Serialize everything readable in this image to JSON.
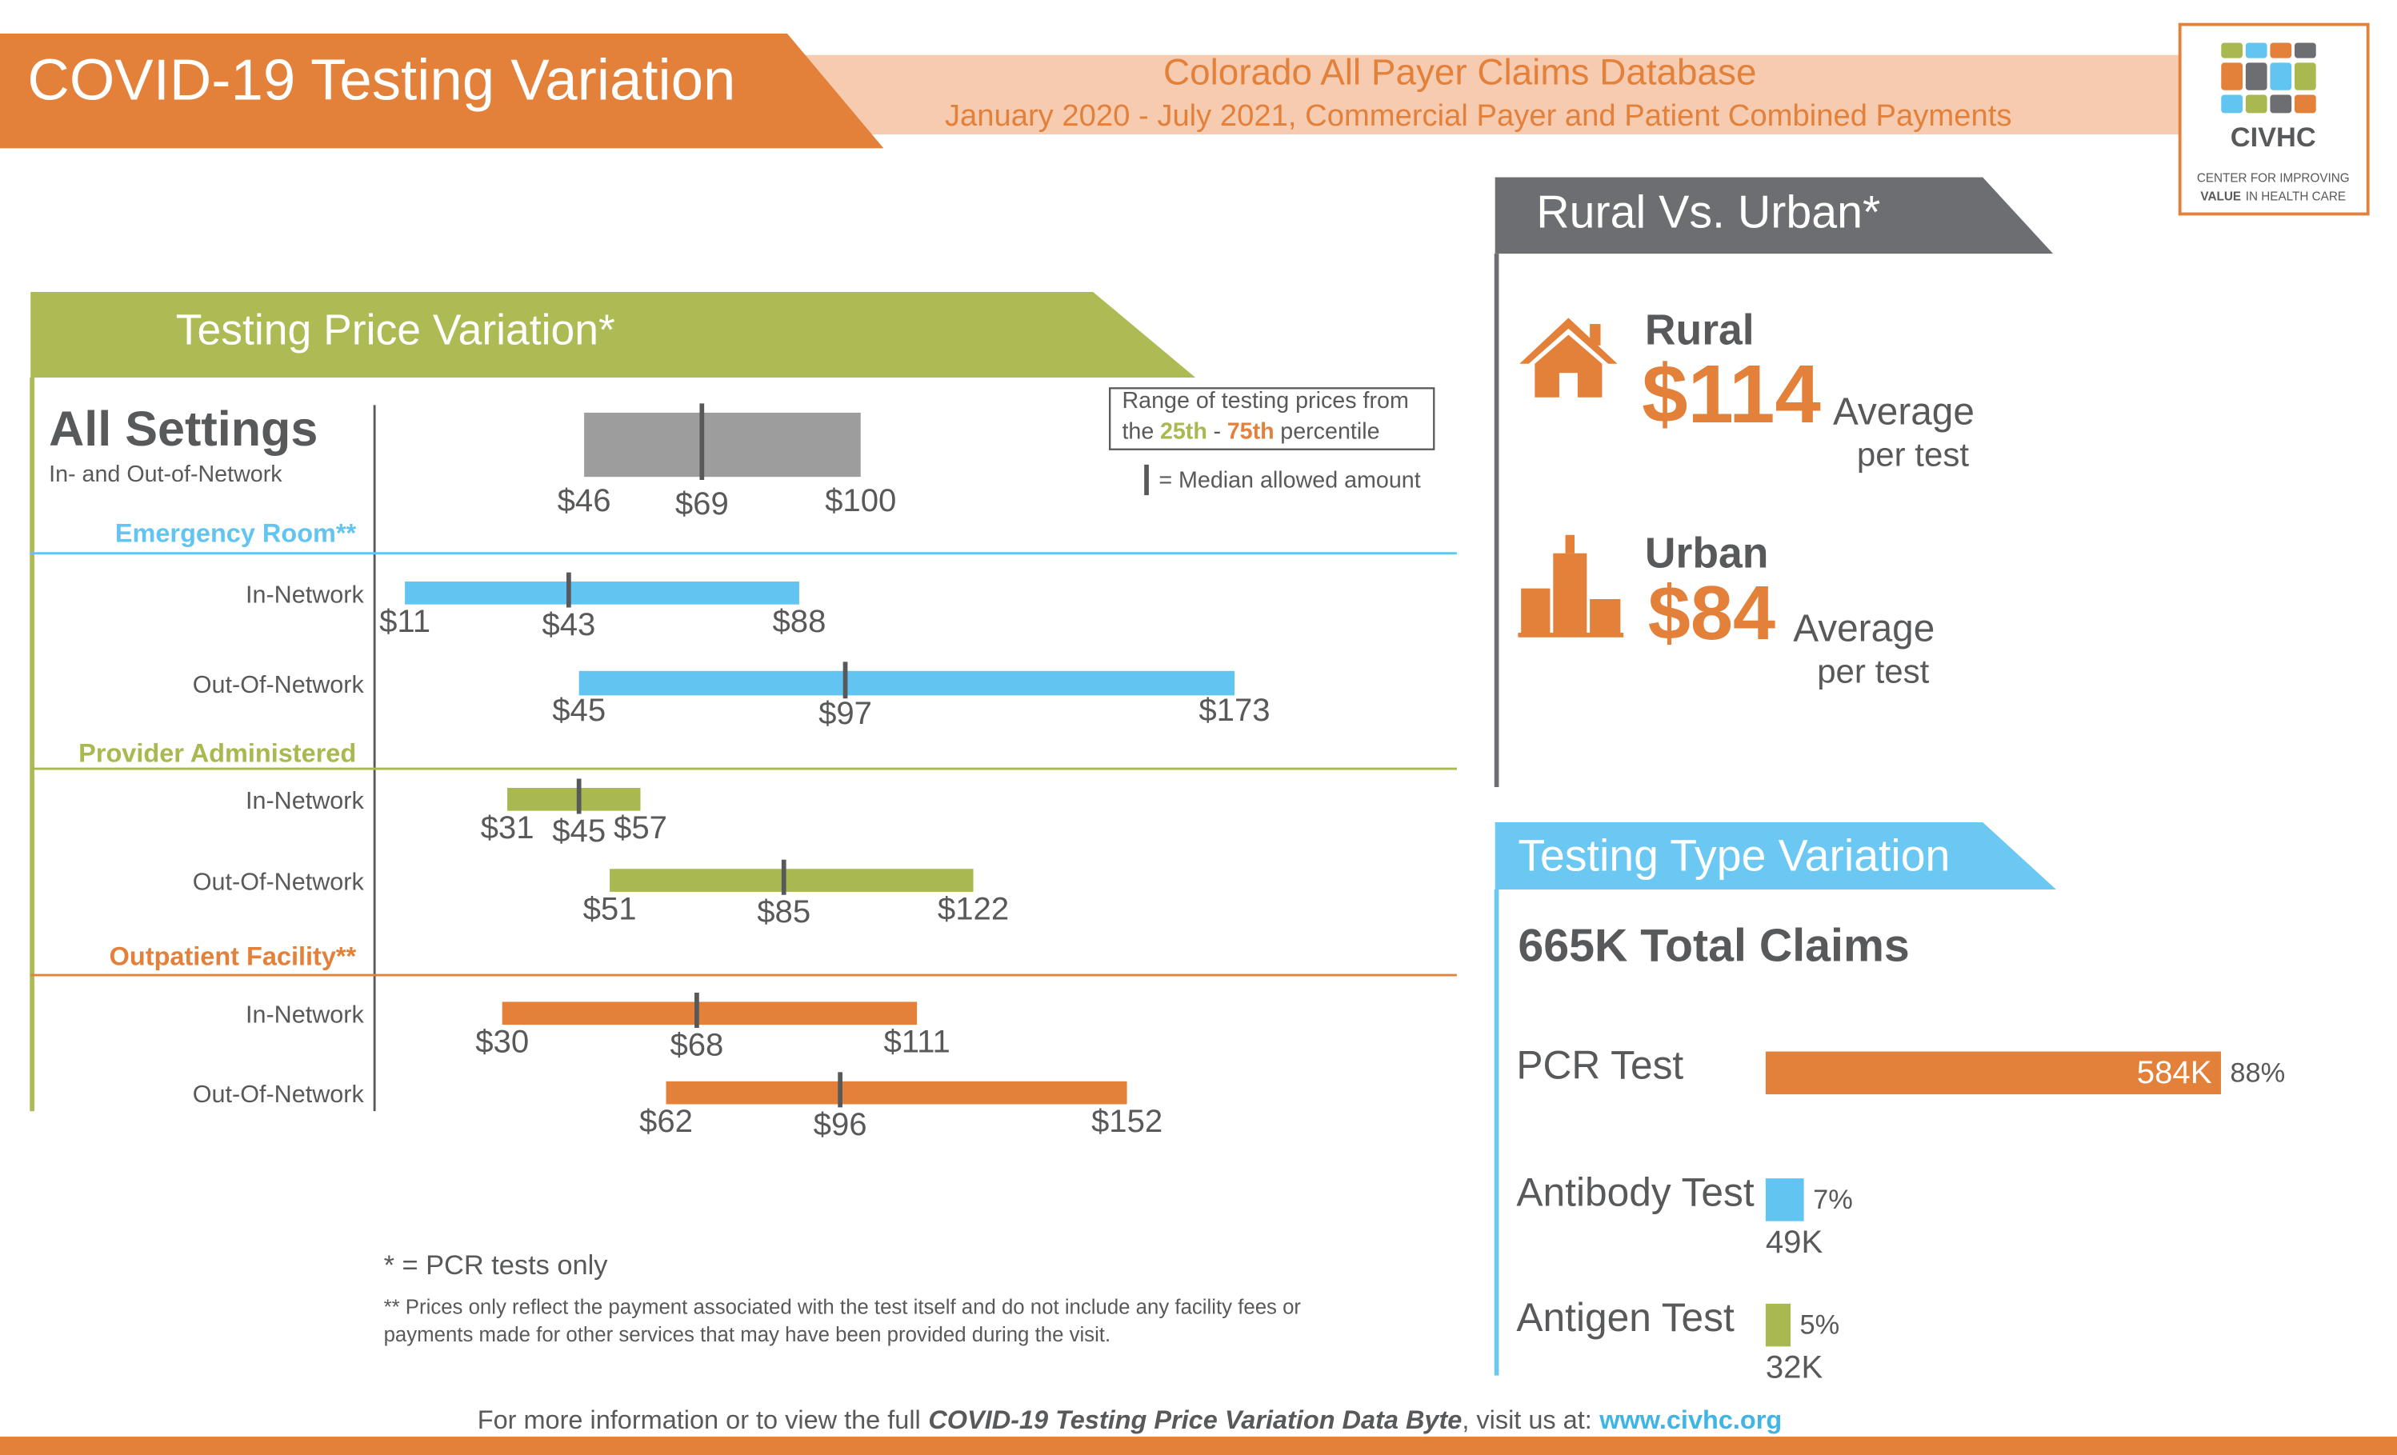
{
  "header": {
    "title": "COVID-19 Testing Variation",
    "subtitle": "Colorado All Payer Claims Database",
    "date_range": "January 2020 - July 2021, Commercial Payer and Patient Combined Payments"
  },
  "logo": {
    "name": "CIVHC",
    "tagline_1": "CENTER FOR IMPROVING",
    "tagline_2_bold": "VALUE",
    "tagline_2": "IN HEALTH CARE"
  },
  "chart_data": [
    {
      "type": "range",
      "title": "Testing Price Variation*",
      "xlim": [
        0,
        180
      ],
      "legend": {
        "range_line_1": "Range of testing prices from",
        "range_line_2": [
          "the",
          "25th",
          "-",
          "75th",
          "percentile"
        ],
        "median_text": "= Median allowed amount"
      },
      "groups": [
        {
          "name": "All Settings",
          "subtitle": "In- and Out-of-Network",
          "color": "#9d9d9d",
          "rows": [
            {
              "label": null,
              "low": 46,
              "low_label": "$46",
              "median": 69,
              "median_label": "$69",
              "high": 100,
              "high_label": "$100"
            }
          ]
        },
        {
          "name": "Emergency Room**",
          "color": "#62c5f1",
          "rows": [
            {
              "label": "In-Network",
              "low": 11,
              "low_label": "$11",
              "median": 43,
              "median_label": "$43",
              "high": 88,
              "high_label": "$88"
            },
            {
              "label": "Out-Of-Network",
              "low": 45,
              "low_label": "$45",
              "median": 97,
              "median_label": "$97",
              "high": 173,
              "high_label": "$173"
            }
          ]
        },
        {
          "name": "Provider Administered",
          "color": "#a9b84f",
          "rows": [
            {
              "label": "In-Network",
              "low": 31,
              "low_label": "$31",
              "median": 45,
              "median_label": "$45",
              "high": 57,
              "high_label": "$57"
            },
            {
              "label": "Out-Of-Network",
              "low": 51,
              "low_label": "$51",
              "median": 85,
              "median_label": "$85",
              "high": 122,
              "high_label": "$122"
            }
          ]
        },
        {
          "name": "Outpatient Facility**",
          "color": "#e3803a",
          "rows": [
            {
              "label": "In-Network",
              "low": 30,
              "low_label": "$30",
              "median": 68,
              "median_label": "$68",
              "high": 111,
              "high_label": "$111"
            },
            {
              "label": "Out-Of-Network",
              "low": 62,
              "low_label": "$62",
              "median": 96,
              "median_label": "$96",
              "high": 152,
              "high_label": "$152"
            }
          ]
        }
      ]
    },
    {
      "type": "bar",
      "title": "Testing Type Variation",
      "subtitle": "665K Total Claims",
      "categories": [
        "PCR Test",
        "Antibody Test",
        "Antigen Test"
      ],
      "values": [
        584000,
        49000,
        32000
      ],
      "value_labels": [
        "584K",
        "49K",
        "32K"
      ],
      "percent_labels": [
        "88%",
        "7%",
        "5%"
      ],
      "colors": [
        "#e3803a",
        "#62c5f1",
        "#a9b84f"
      ],
      "xlim": [
        0,
        600000
      ]
    }
  ],
  "rural_urban": {
    "title": "Rural  Vs. Urban*",
    "items": [
      {
        "name": "Rural",
        "value": "$114",
        "caption": "Average",
        "caption_2": "per test"
      },
      {
        "name": "Urban",
        "value": "$84",
        "caption": "Average",
        "caption_2": "per test"
      }
    ]
  },
  "footnotes": [
    "* = PCR tests only",
    "** Prices only reflect the payment associated with the test itself and do not include any facility fees or",
    "payments made for other services that may have been provided during the visit."
  ],
  "footer": {
    "text": "For more information or to view the full",
    "emphasis": "COVID-19 Testing Price Variation Data Byte",
    "text_2": ", visit us at:",
    "link": "www.civhc.org"
  }
}
